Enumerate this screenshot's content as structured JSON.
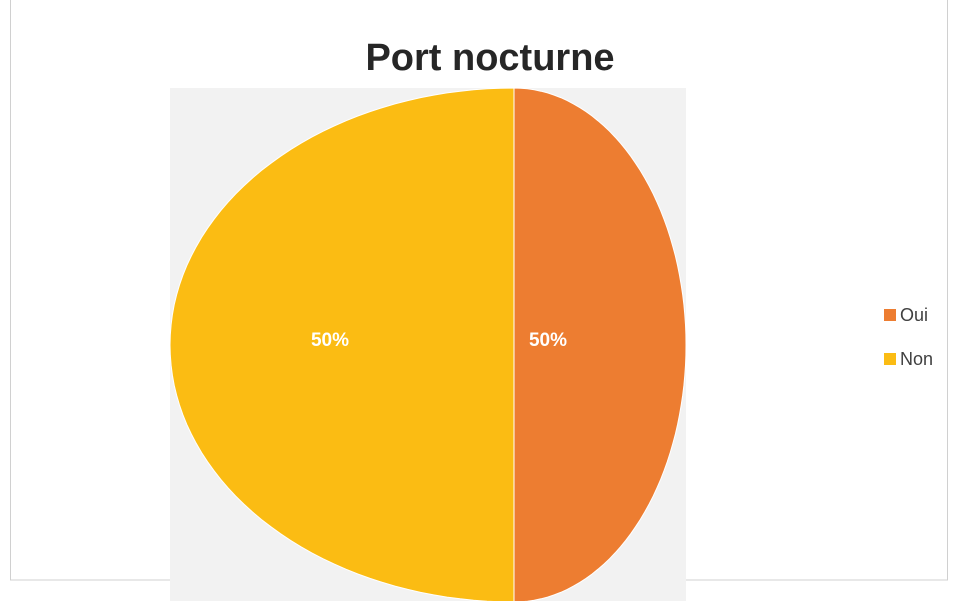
{
  "chart_data": {
    "type": "pie",
    "title": "Port nocturne",
    "categories": [
      "Oui",
      "Non"
    ],
    "values": [
      50,
      50
    ],
    "value_labels": [
      "50%",
      "50%"
    ],
    "colors": [
      "#ED7D31",
      "#FBBC13"
    ],
    "legend": "right"
  }
}
